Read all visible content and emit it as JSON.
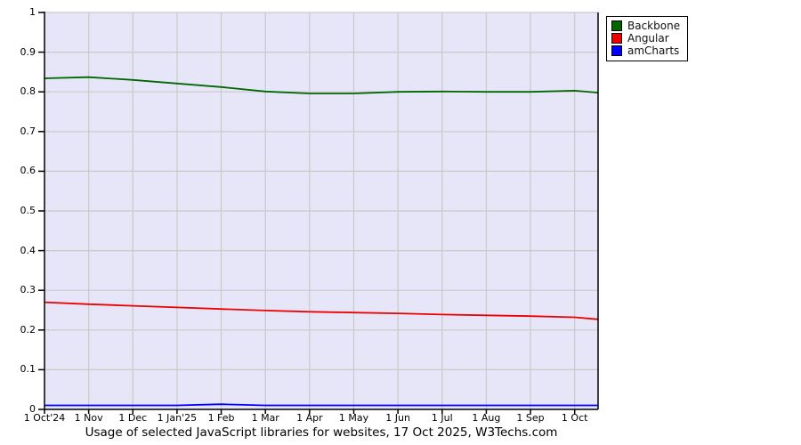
{
  "chart_data": {
    "type": "line",
    "title": "Usage of selected JavaScript libraries for websites, 17 Oct 2025, W3Techs.com",
    "xlabel": "",
    "ylabel": "",
    "ylim": [
      0,
      1
    ],
    "grid": true,
    "legend_position": "top-right-outside",
    "plot_bg": "#e6e6f8",
    "grid_color": "#c9c9c9",
    "axis_color": "#000000",
    "x_max": 12.53,
    "x": [
      0,
      1,
      2,
      3,
      4,
      5,
      6,
      7,
      8,
      9,
      10,
      11,
      12,
      12.53
    ],
    "x_tick_positions": [
      0,
      1,
      2,
      3,
      4,
      5,
      6,
      7,
      8,
      9,
      10,
      11,
      12
    ],
    "x_tick_labels": [
      "1 Oct'24",
      "1 Nov",
      "1 Dec",
      "1 Jan'25",
      "1 Feb",
      "1 Mar",
      "1 Apr",
      "1 May",
      "1 Jun",
      "1 Jul",
      "1 Aug",
      "1 Sep",
      "1 Oct"
    ],
    "y_ticks": [
      0,
      0.1,
      0.2,
      0.3,
      0.4,
      0.5,
      0.6,
      0.7,
      0.8,
      0.9,
      1
    ],
    "y_tick_labels": [
      "0",
      "0.1",
      "0.2",
      "0.3",
      "0.4",
      "0.5",
      "0.6",
      "0.7",
      "0.8",
      "0.9",
      "1"
    ],
    "series": [
      {
        "name": "Backbone",
        "color": "#006600",
        "values": [
          0.834,
          0.837,
          0.83,
          0.821,
          0.812,
          0.801,
          0.796,
          0.796,
          0.8,
          0.801,
          0.8,
          0.8,
          0.803,
          0.798
        ]
      },
      {
        "name": "Angular",
        "color": "#ee0000",
        "values": [
          0.27,
          0.265,
          0.261,
          0.257,
          0.253,
          0.249,
          0.246,
          0.244,
          0.242,
          0.239,
          0.237,
          0.235,
          0.232,
          0.227
        ]
      },
      {
        "name": "amCharts",
        "color": "#0000ff",
        "values": [
          0.01,
          0.01,
          0.01,
          0.01,
          0.013,
          0.01,
          0.01,
          0.01,
          0.01,
          0.01,
          0.01,
          0.01,
          0.01,
          0.01
        ]
      }
    ]
  }
}
